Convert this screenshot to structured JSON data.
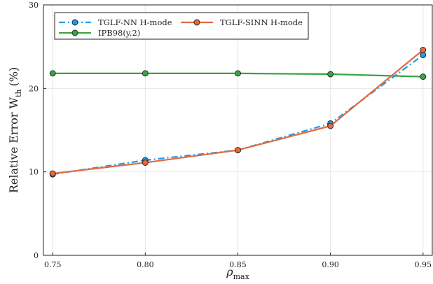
{
  "chart_data": {
    "type": "line",
    "xlabel": "ρ",
    "xlabel_sub": "max",
    "ylabel": "Relative Error W",
    "ylabel_sub": "th",
    "ylabel_unit": "(%)",
    "xlim": [
      0.745,
      0.955
    ],
    "ylim": [
      0,
      30
    ],
    "x_ticks": [
      "0.75",
      "0.80",
      "0.85",
      "0.90",
      "0.95"
    ],
    "y_ticks": [
      "0",
      "10",
      "20",
      "30"
    ],
    "grid": true,
    "legend_position": "top-left",
    "x": [
      0.75,
      0.8,
      0.85,
      0.9,
      0.95
    ],
    "series": [
      {
        "name": "TGLF-NN H-mode",
        "values": [
          9.7,
          11.4,
          12.6,
          15.8,
          24.0
        ],
        "color": "#1f9be8",
        "line": "dashdot"
      },
      {
        "name": "TGLF-SINN H-mode",
        "values": [
          9.8,
          11.1,
          12.6,
          15.5,
          24.6
        ],
        "color": "#e26a3e",
        "line": "solid"
      },
      {
        "name": "IPB98(y,2)",
        "values": [
          21.8,
          21.8,
          21.8,
          21.7,
          21.4
        ],
        "color": "#3aa345",
        "line": "solid"
      }
    ]
  }
}
